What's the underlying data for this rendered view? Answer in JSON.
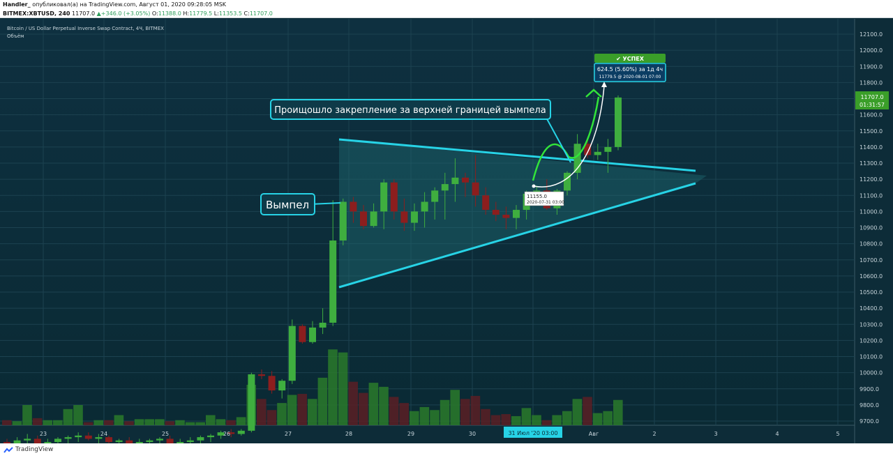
{
  "header": {
    "author": "Handler_",
    "published": "опубликовал(а) на TradingView.com, Август 01, 2020 09:28:05 MSK",
    "symbol": "BITMEX:XBTUSD, 240",
    "last": "11707.0",
    "change": "▲+346.0 (+3.05%)",
    "ohlc": {
      "o_label": "O:",
      "o": "11388.0",
      "h_label": "H:",
      "h": "11779.5",
      "l_label": "L:",
      "l": "11353.5",
      "c_label": "C:",
      "c": "11707.0"
    }
  },
  "legend": {
    "title": "Bitcoin / US Dollar Perpetual Inverse Swap Contract, 4Ч, BITMEX",
    "volume_label": "Объём"
  },
  "annotations": {
    "pennant_label": "Вымпел",
    "breakout_label": "Проищошло закрепление за верхней границей вымпела",
    "success_label": "✔ УСПЕХ",
    "measure_line1": "624.5 (5.60%) за 1д 4ч",
    "measure_line2": "11779.5 @ 2020-08-01  07:00",
    "start_line1": "11155.0",
    "start_line2": "2020-07-31 03:00"
  },
  "price_axis": {
    "current_price": "11707.0",
    "countdown": "01:31:57"
  },
  "time_axis": {
    "crosshair_label": "31 Июл '20   03:00"
  },
  "footer": {
    "brand": "TradingView"
  },
  "colors": {
    "bg": "#0b2a36",
    "up": "#3fae3f",
    "down": "#8c1e1e",
    "line": "#27d3e6",
    "success": "#3a9e29"
  },
  "chart_data": {
    "type": "candlestick",
    "ylim": [
      9650,
      12150
    ],
    "yticks": [
      9700,
      9800,
      9900,
      10000,
      10100,
      10200,
      10300,
      10400,
      10500,
      10600,
      10700,
      10800,
      10900,
      11000,
      11100,
      11200,
      11300,
      11400,
      11500,
      11600,
      11700,
      11800,
      11900,
      12000,
      12100
    ],
    "xticks": [
      "23",
      "24",
      "25",
      "26",
      "27",
      "28",
      "29",
      "30",
      "31 Июл '20   03:00",
      "Авг",
      "2",
      "3",
      "4",
      "5"
    ],
    "candles": [
      {
        "o": 9570,
        "h": 9590,
        "l": 9530,
        "c": 9560,
        "v": 0.05
      },
      {
        "o": 9560,
        "h": 9600,
        "l": 9540,
        "c": 9580,
        "v": 0.04
      },
      {
        "o": 9580,
        "h": 9620,
        "l": 9550,
        "c": 9590,
        "v": 0.2
      },
      {
        "o": 9590,
        "h": 9610,
        "l": 9540,
        "c": 9560,
        "v": 0.07
      },
      {
        "o": 9560,
        "h": 9590,
        "l": 9530,
        "c": 9570,
        "v": 0.05
      },
      {
        "o": 9570,
        "h": 9600,
        "l": 9550,
        "c": 9590,
        "v": 0.05
      },
      {
        "o": 9590,
        "h": 9610,
        "l": 9560,
        "c": 9600,
        "v": 0.16
      },
      {
        "o": 9600,
        "h": 9630,
        "l": 9570,
        "c": 9610,
        "v": 0.2
      },
      {
        "o": 9610,
        "h": 9630,
        "l": 9580,
        "c": 9590,
        "v": 0.03
      },
      {
        "o": 9590,
        "h": 9620,
        "l": 9560,
        "c": 9600,
        "v": 0.05
      },
      {
        "o": 9600,
        "h": 9610,
        "l": 9560,
        "c": 9570,
        "v": 0.05
      },
      {
        "o": 9570,
        "h": 9590,
        "l": 9540,
        "c": 9580,
        "v": 0.1
      },
      {
        "o": 9580,
        "h": 9600,
        "l": 9550,
        "c": 9560,
        "v": 0.04
      },
      {
        "o": 9560,
        "h": 9590,
        "l": 9540,
        "c": 9570,
        "v": 0.06
      },
      {
        "o": 9570,
        "h": 9590,
        "l": 9550,
        "c": 9580,
        "v": 0.06
      },
      {
        "o": 9580,
        "h": 9600,
        "l": 9560,
        "c": 9590,
        "v": 0.06
      },
      {
        "o": 9590,
        "h": 9610,
        "l": 9550,
        "c": 9560,
        "v": 0.04
      },
      {
        "o": 9560,
        "h": 9590,
        "l": 9540,
        "c": 9570,
        "v": 0.05
      },
      {
        "o": 9570,
        "h": 9600,
        "l": 9550,
        "c": 9580,
        "v": 0.03
      },
      {
        "o": 9580,
        "h": 9610,
        "l": 9560,
        "c": 9600,
        "v": 0.03
      },
      {
        "o": 9600,
        "h": 9620,
        "l": 9570,
        "c": 9610,
        "v": 0.1
      },
      {
        "o": 9610,
        "h": 9640,
        "l": 9590,
        "c": 9630,
        "v": 0.06
      },
      {
        "o": 9630,
        "h": 9650,
        "l": 9600,
        "c": 9620,
        "v": 0.05
      },
      {
        "o": 9620,
        "h": 9650,
        "l": 9610,
        "c": 9640,
        "v": 0.08
      },
      {
        "o": 9640,
        "h": 10000,
        "l": 9630,
        "c": 9990,
        "v": 0.4
      },
      {
        "o": 9990,
        "h": 10020,
        "l": 9960,
        "c": 9980,
        "v": 0.26
      },
      {
        "o": 9980,
        "h": 10010,
        "l": 9870,
        "c": 9890,
        "v": 0.15
      },
      {
        "o": 9890,
        "h": 9960,
        "l": 9840,
        "c": 9950,
        "v": 0.22
      },
      {
        "o": 9950,
        "h": 10330,
        "l": 9930,
        "c": 10290,
        "v": 0.3
      },
      {
        "o": 10290,
        "h": 10300,
        "l": 10180,
        "c": 10190,
        "v": 0.31
      },
      {
        "o": 10190,
        "h": 10320,
        "l": 10180,
        "c": 10280,
        "v": 0.26
      },
      {
        "o": 10280,
        "h": 10400,
        "l": 10240,
        "c": 10310,
        "v": 0.47
      },
      {
        "o": 10310,
        "h": 11070,
        "l": 10290,
        "c": 10820,
        "v": 0.75
      },
      {
        "o": 10820,
        "h": 11080,
        "l": 10790,
        "c": 11060,
        "v": 0.72
      },
      {
        "o": 11060,
        "h": 11090,
        "l": 10930,
        "c": 11000,
        "v": 0.43
      },
      {
        "o": 11000,
        "h": 11040,
        "l": 10890,
        "c": 10910,
        "v": 0.32
      },
      {
        "o": 10910,
        "h": 11050,
        "l": 10900,
        "c": 11000,
        "v": 0.42
      },
      {
        "o": 11000,
        "h": 11200,
        "l": 10890,
        "c": 11180,
        "v": 0.38
      },
      {
        "o": 11180,
        "h": 11200,
        "l": 10950,
        "c": 11000,
        "v": 0.28
      },
      {
        "o": 11000,
        "h": 11080,
        "l": 10880,
        "c": 10930,
        "v": 0.22
      },
      {
        "o": 10930,
        "h": 11050,
        "l": 10880,
        "c": 11000,
        "v": 0.14
      },
      {
        "o": 11000,
        "h": 11120,
        "l": 10900,
        "c": 11060,
        "v": 0.18
      },
      {
        "o": 11060,
        "h": 11150,
        "l": 10950,
        "c": 11130,
        "v": 0.15
      },
      {
        "o": 11130,
        "h": 11240,
        "l": 10950,
        "c": 11170,
        "v": 0.25
      },
      {
        "o": 11170,
        "h": 11330,
        "l": 11060,
        "c": 11210,
        "v": 0.35
      },
      {
        "o": 11210,
        "h": 11240,
        "l": 11090,
        "c": 11180,
        "v": 0.26
      },
      {
        "o": 11180,
        "h": 11350,
        "l": 11030,
        "c": 11100,
        "v": 0.29
      },
      {
        "o": 11100,
        "h": 11150,
        "l": 10980,
        "c": 11010,
        "v": 0.16
      },
      {
        "o": 11010,
        "h": 11060,
        "l": 10940,
        "c": 10980,
        "v": 0.1
      },
      {
        "o": 10980,
        "h": 11030,
        "l": 10890,
        "c": 10960,
        "v": 0.11
      },
      {
        "o": 10960,
        "h": 11040,
        "l": 10890,
        "c": 11010,
        "v": 0.09
      },
      {
        "o": 11010,
        "h": 11130,
        "l": 10950,
        "c": 11110,
        "v": 0.17
      },
      {
        "o": 11110,
        "h": 11160,
        "l": 11060,
        "c": 11130,
        "v": 0.1
      },
      {
        "o": 11130,
        "h": 11200,
        "l": 11010,
        "c": 11020,
        "v": 0.05
      },
      {
        "o": 11020,
        "h": 11140,
        "l": 10980,
        "c": 11130,
        "v": 0.1
      },
      {
        "o": 11130,
        "h": 11250,
        "l": 11100,
        "c": 11240,
        "v": 0.14
      },
      {
        "o": 11240,
        "h": 11480,
        "l": 11200,
        "c": 11420,
        "v": 0.26
      },
      {
        "o": 11420,
        "h": 11460,
        "l": 11330,
        "c": 11350,
        "v": 0.28
      },
      {
        "o": 11350,
        "h": 11420,
        "l": 11320,
        "c": 11370,
        "v": 0.12
      },
      {
        "o": 11370,
        "h": 11450,
        "l": 11240,
        "c": 11400,
        "v": 0.14
      },
      {
        "o": 11400,
        "h": 11720,
        "l": 11380,
        "c": 11707,
        "v": 0.25
      }
    ]
  }
}
